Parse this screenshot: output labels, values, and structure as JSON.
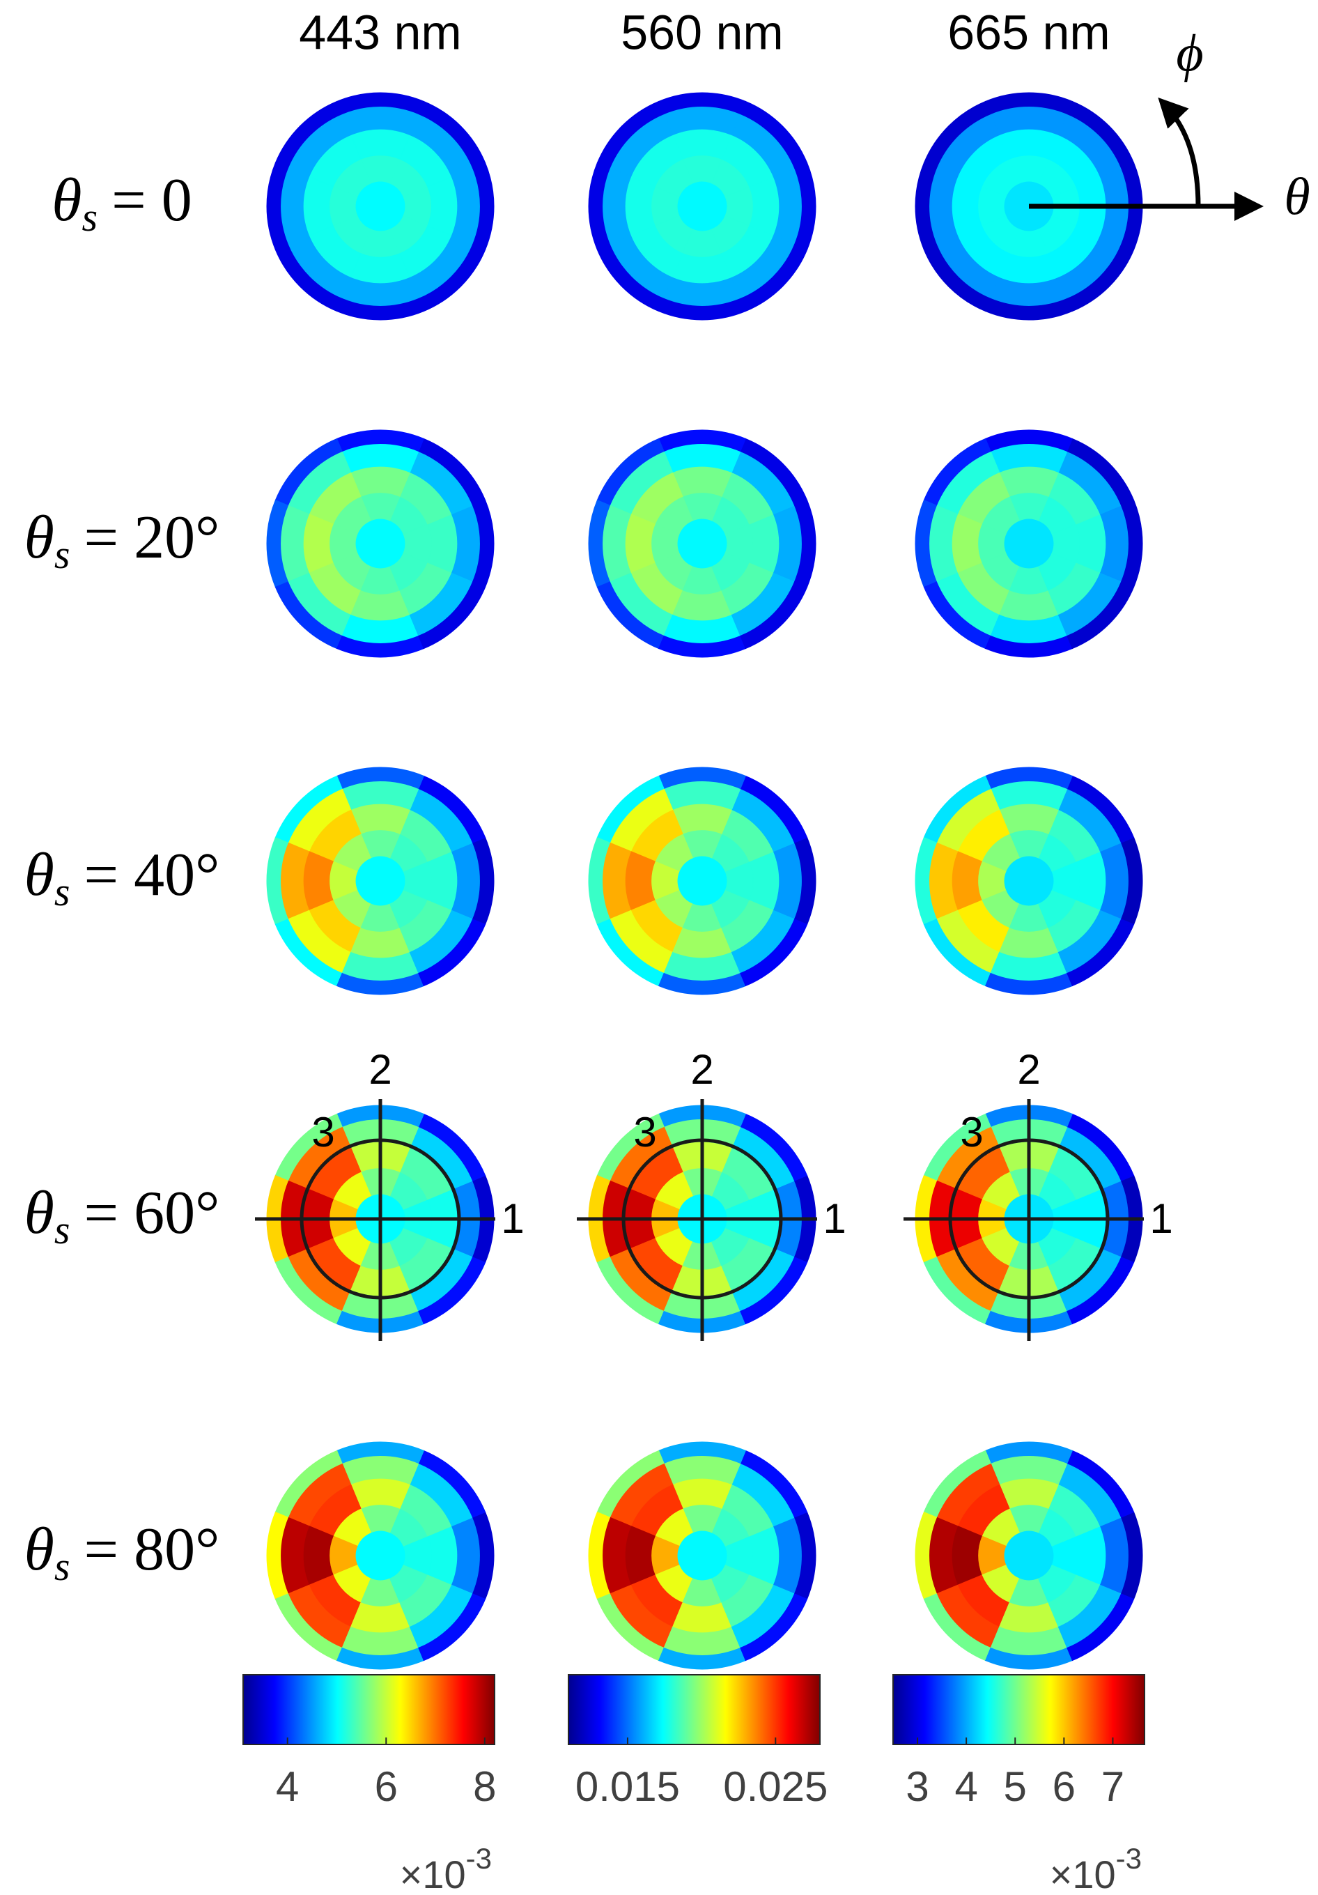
{
  "chart_data": {
    "type": "polar_heatmap",
    "colormap": "jet",
    "columns": [
      {
        "title": "443 nm",
        "clim": [
          3.1,
          8.2
        ],
        "ticks": [
          4,
          6,
          8
        ],
        "exponent_base": "×10",
        "exponent_power": "-3"
      },
      {
        "title": "560 nm",
        "clim": [
          0.011,
          0.028
        ],
        "ticks": [
          0.015,
          0.025
        ]
      },
      {
        "title": "665 nm",
        "clim": [
          2.5,
          7.65
        ],
        "ticks": [
          3,
          4,
          5,
          6,
          7
        ],
        "exponent_base": "×10",
        "exponent_power": "-3"
      }
    ],
    "rows": [
      {
        "label_var": "θ",
        "label_sub": "s",
        "label_rest": "= 0",
        "panels": [
          {
            "center": 5.0,
            "rings": [
              [
                5.2,
                5.2,
                5.2,
                5.2,
                5.2,
                5.2,
                5.2,
                5.2
              ],
              [
                5.1,
                5.1,
                5.1,
                5.1,
                5.1,
                5.1,
                5.1,
                5.1
              ],
              [
                4.6,
                4.6,
                4.6,
                4.6,
                4.6,
                4.6,
                4.6,
                4.6
              ],
              [
                3.6,
                3.6,
                3.6,
                3.6,
                3.6,
                3.6,
                3.6,
                3.6
              ]
            ]
          },
          {
            "center": 0.0173,
            "rings": [
              [
                0.018,
                0.018,
                0.018,
                0.018,
                0.018,
                0.018,
                0.018,
                0.018
              ],
              [
                0.0177,
                0.0177,
                0.0177,
                0.0177,
                0.0177,
                0.0177,
                0.0177,
                0.0177
              ],
              [
                0.016,
                0.016,
                0.016,
                0.016,
                0.016,
                0.016,
                0.016,
                0.016
              ],
              [
                0.0127,
                0.0127,
                0.0127,
                0.0127,
                0.0127,
                0.0127,
                0.0127,
                0.0127
              ]
            ]
          },
          {
            "center": 4.3,
            "rings": [
              [
                4.5,
                4.5,
                4.5,
                4.5,
                4.5,
                4.5,
                4.5,
                4.5
              ],
              [
                4.4,
                4.4,
                4.4,
                4.4,
                4.4,
                4.4,
                4.4,
                4.4
              ],
              [
                3.9,
                3.9,
                3.9,
                3.9,
                3.9,
                3.9,
                3.9,
                3.9
              ],
              [
                2.9,
                2.9,
                2.9,
                2.9,
                2.9,
                2.9,
                2.9,
                2.9
              ]
            ]
          }
        ]
      },
      {
        "label_var": "θ",
        "label_sub": "s",
        "label_rest": "= 20°",
        "panels": [
          {
            "center": 5.0,
            "rings": [
              [
                5.3,
                5.3,
                5.4,
                5.5,
                5.5,
                5.5,
                5.4,
                5.3
              ],
              [
                5.3,
                5.4,
                5.6,
                5.8,
                5.9,
                5.8,
                5.6,
                5.4
              ],
              [
                4.6,
                4.7,
                5.0,
                5.3,
                5.4,
                5.3,
                5.0,
                4.7
              ],
              [
                3.6,
                3.6,
                3.8,
                4.0,
                4.2,
                4.0,
                3.8,
                3.6
              ]
            ]
          },
          {
            "center": 0.0173,
            "rings": [
              [
                0.0183,
                0.0183,
                0.0187,
                0.019,
                0.019,
                0.019,
                0.0187,
                0.0183
              ],
              [
                0.0183,
                0.0187,
                0.0193,
                0.02,
                0.0203,
                0.02,
                0.0193,
                0.0187
              ],
              [
                0.016,
                0.0163,
                0.0173,
                0.0183,
                0.0187,
                0.0183,
                0.0173,
                0.0163
              ],
              [
                0.0127,
                0.0127,
                0.0133,
                0.014,
                0.0147,
                0.014,
                0.0133,
                0.0127
              ]
            ]
          },
          {
            "center": 4.3,
            "rings": [
              [
                4.6,
                4.6,
                4.7,
                4.8,
                4.8,
                4.8,
                4.7,
                4.6
              ],
              [
                4.6,
                4.7,
                4.9,
                5.1,
                5.2,
                5.1,
                4.9,
                4.7
              ],
              [
                3.9,
                4.0,
                4.3,
                4.6,
                4.7,
                4.6,
                4.3,
                4.0
              ],
              [
                2.9,
                2.9,
                3.1,
                3.3,
                3.5,
                3.3,
                3.1,
                2.9
              ]
            ]
          }
        ]
      },
      {
        "label_var": "θ",
        "label_sub": "s",
        "label_rest": "= 40°",
        "panels": [
          {
            "center": 5.0,
            "rings": [
              [
                5.2,
                5.3,
                5.5,
                5.8,
                6.0,
                5.8,
                5.5,
                5.3
              ],
              [
                5.2,
                5.4,
                5.8,
                6.5,
                6.9,
                6.5,
                5.8,
                5.4
              ],
              [
                4.5,
                4.7,
                5.3,
                6.2,
                6.7,
                6.2,
                5.3,
                4.7
              ],
              [
                3.5,
                3.7,
                4.2,
                5.0,
                5.3,
                5.0,
                4.2,
                3.7
              ]
            ]
          },
          {
            "center": 0.0173,
            "rings": [
              [
                0.018,
                0.0183,
                0.019,
                0.02,
                0.0207,
                0.02,
                0.019,
                0.0183
              ],
              [
                0.018,
                0.0187,
                0.02,
                0.0223,
                0.0237,
                0.0223,
                0.02,
                0.0187
              ],
              [
                0.0157,
                0.0163,
                0.0183,
                0.0213,
                0.023,
                0.0213,
                0.0183,
                0.0163
              ],
              [
                0.0123,
                0.013,
                0.0147,
                0.0173,
                0.0183,
                0.0173,
                0.0147,
                0.013
              ]
            ]
          },
          {
            "center": 4.3,
            "rings": [
              [
                4.5,
                4.6,
                4.8,
                5.1,
                5.3,
                5.1,
                4.8,
                4.6
              ],
              [
                4.5,
                4.7,
                5.1,
                5.8,
                6.2,
                5.8,
                5.1,
                4.7
              ],
              [
                3.8,
                4.0,
                4.6,
                5.5,
                6.0,
                5.5,
                4.6,
                4.0
              ],
              [
                2.8,
                3.0,
                3.5,
                4.3,
                4.6,
                4.3,
                3.5,
                3.0
              ]
            ]
          }
        ]
      },
      {
        "label_var": "θ",
        "label_sub": "s",
        "label_rest": "= 60°",
        "panels": [
          {
            "center": 5.0,
            "rings": [
              [
                5.1,
                5.3,
                5.6,
                6.2,
                6.6,
                6.2,
                5.6,
                5.3
              ],
              [
                5.1,
                5.4,
                6.0,
                7.2,
                7.8,
                7.2,
                6.0,
                5.4
              ],
              [
                4.4,
                4.8,
                5.6,
                7.0,
                7.8,
                7.0,
                5.6,
                4.8
              ],
              [
                3.5,
                3.8,
                4.5,
                5.6,
                6.5,
                5.6,
                4.5,
                3.8
              ]
            ]
          },
          {
            "center": 0.0173,
            "rings": [
              [
                0.0177,
                0.0183,
                0.0193,
                0.0213,
                0.0227,
                0.0213,
                0.0193,
                0.0183
              ],
              [
                0.0177,
                0.0187,
                0.0207,
                0.0247,
                0.0267,
                0.0247,
                0.0207,
                0.0187
              ],
              [
                0.0153,
                0.0167,
                0.0193,
                0.024,
                0.0267,
                0.024,
                0.0193,
                0.0167
              ],
              [
                0.0123,
                0.0133,
                0.0157,
                0.0193,
                0.0223,
                0.0193,
                0.0157,
                0.0133
              ]
            ]
          },
          {
            "center": 4.3,
            "rings": [
              [
                4.4,
                4.6,
                4.9,
                5.5,
                5.9,
                5.5,
                4.9,
                4.6
              ],
              [
                4.4,
                4.7,
                5.3,
                6.5,
                7.1,
                6.5,
                5.3,
                4.7
              ],
              [
                3.7,
                4.1,
                4.9,
                6.3,
                7.1,
                6.3,
                4.9,
                4.1
              ],
              [
                2.8,
                3.1,
                3.8,
                4.9,
                5.8,
                4.9,
                3.8,
                3.1
              ]
            ]
          }
        ]
      },
      {
        "label_var": "θ",
        "label_sub": "s",
        "label_rest": "= 80°",
        "panels": [
          {
            "center": 5.0,
            "rings": [
              [
                5.1,
                5.3,
                5.6,
                6.2,
                6.7,
                6.2,
                5.6,
                5.3
              ],
              [
                5.1,
                5.4,
                6.1,
                7.3,
                8.0,
                7.3,
                6.1,
                5.4
              ],
              [
                4.4,
                4.8,
                5.7,
                7.2,
                7.9,
                7.2,
                5.7,
                4.8
              ],
              [
                3.5,
                3.8,
                4.6,
                5.7,
                6.3,
                5.7,
                4.6,
                3.8
              ]
            ]
          },
          {
            "center": 0.0173,
            "rings": [
              [
                0.0177,
                0.0183,
                0.0193,
                0.0213,
                0.023,
                0.0213,
                0.0193,
                0.0183
              ],
              [
                0.0177,
                0.0187,
                0.021,
                0.025,
                0.0273,
                0.025,
                0.021,
                0.0187
              ],
              [
                0.0153,
                0.0167,
                0.0197,
                0.0247,
                0.027,
                0.0247,
                0.0197,
                0.0167
              ],
              [
                0.0123,
                0.0133,
                0.016,
                0.0197,
                0.0217,
                0.0197,
                0.016,
                0.0133
              ]
            ]
          },
          {
            "center": 4.3,
            "rings": [
              [
                4.4,
                4.6,
                4.9,
                5.5,
                6.2,
                5.5,
                4.9,
                4.6
              ],
              [
                4.4,
                4.7,
                5.4,
                6.8,
                7.5,
                6.8,
                5.4,
                4.7
              ],
              [
                3.7,
                4.1,
                5.0,
                6.7,
                7.4,
                6.7,
                5.0,
                4.1
              ],
              [
                2.8,
                3.1,
                3.9,
                5.0,
                5.6,
                5.0,
                3.9,
                3.1
              ]
            ]
          }
        ]
      }
    ],
    "annotations": {
      "axis_1": "1",
      "axis_2": "2",
      "axis_3": "3",
      "theta": "θ",
      "phi": "ϕ"
    }
  }
}
